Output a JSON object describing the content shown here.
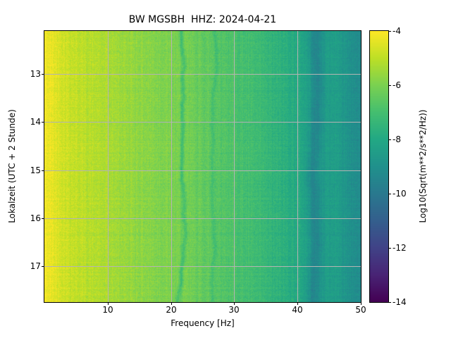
{
  "figure": {
    "kind": "seismic spectrogram"
  },
  "chart_data": {
    "type": "heatmap",
    "title": "BW MGSBH  HHZ: 2024-04-21",
    "xlabel": "Frequency [Hz]",
    "ylabel": "Lokalzeit (UTC + 2 Stunde)",
    "x_range": [
      0,
      50
    ],
    "x_ticks": [
      10,
      20,
      30,
      40,
      50
    ],
    "y_range": [
      12.1,
      17.75
    ],
    "y_ticks": [
      13,
      14,
      15,
      16,
      17
    ],
    "y_increases_downward": true,
    "grid": true,
    "grid_color": "#b4b4b4",
    "colormap": "viridis",
    "colorbar": {
      "label": "Log10(Sqrt(m**2/s**2/Hz))",
      "vmin": -14,
      "vmax": -4,
      "ticks": [
        -4,
        -6,
        -8,
        -10,
        -12,
        -14
      ]
    },
    "spectral_profile": {
      "comment": "mean Log10(Sqrt(PSD)) value versus frequency, read from the colormap",
      "freq": [
        0,
        1,
        2,
        4,
        6,
        8,
        10,
        13,
        16,
        20,
        22,
        25,
        28,
        30,
        33,
        36,
        40,
        41.5,
        43,
        44.5,
        46,
        48,
        50
      ],
      "value": [
        -4.2,
        -4.3,
        -4.5,
        -4.8,
        -5.0,
        -5.15,
        -5.3,
        -5.55,
        -5.75,
        -6.0,
        -6.1,
        -6.4,
        -6.65,
        -6.85,
        -7.15,
        -7.5,
        -7.9,
        -8.3,
        -8.7,
        -8.5,
        -8.4,
        -8.9,
        -9.3
      ]
    },
    "features": [
      {
        "name": "narrowband-wiggle",
        "freq": 21.6,
        "width": 0.5,
        "delta": -0.9,
        "wander": 0.5
      },
      {
        "name": "faint-narrowband",
        "freq": 26.8,
        "width": 0.4,
        "delta": -0.45,
        "wander": 0.4
      },
      {
        "name": "dark-band",
        "freq": 43.0,
        "width": 1.4,
        "delta": -0.8,
        "wander": 0.6
      }
    ],
    "noise": {
      "pixel": 0.33,
      "column": 0.18,
      "row": 0.12,
      "seed": 42
    }
  }
}
